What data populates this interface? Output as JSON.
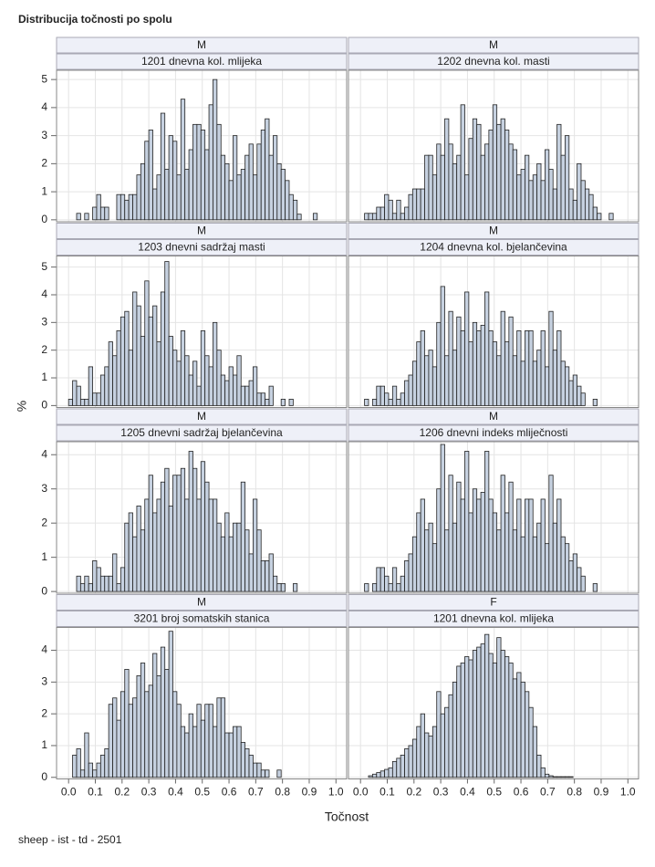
{
  "chart_data": {
    "type": "histogram",
    "title": "Distribucija točnosti po spolu",
    "xlabel": "Točnost",
    "ylabel": "%",
    "footnote": "sheep - ist - td - 2501",
    "xlim": [
      -0.045,
      1.04
    ],
    "xticks": [
      {
        "value": 0,
        "label": "0.0"
      },
      0.1,
      0.2,
      0.3,
      0.4,
      0.5,
      0.6,
      0.7,
      0.8,
      0.9,
      {
        "value": 1,
        "label": "1.0"
      }
    ],
    "bins": [
      0,
      0.015,
      0.03,
      0.045,
      0.06,
      0.075,
      0.09,
      0.105,
      0.12,
      0.135,
      0.15,
      0.165,
      0.18,
      0.195,
      0.21,
      0.225,
      0.24,
      0.255,
      0.27,
      0.285,
      0.3,
      0.315,
      0.33,
      0.345,
      0.36,
      0.375,
      0.39,
      0.405,
      0.42,
      0.435,
      0.45,
      0.465,
      0.48,
      0.495,
      0.51,
      0.525,
      0.54,
      0.555,
      0.57,
      0.585,
      0.6,
      0.615,
      0.63,
      0.645,
      0.66,
      0.675,
      0.69,
      0.705,
      0.72,
      0.735,
      0.75,
      0.765,
      0.78,
      0.795,
      0.81,
      0.825,
      0.84,
      0.855,
      0.87,
      0.885,
      0.9,
      0.915,
      0.93,
      0.945,
      0.96
    ],
    "rows": [
      {
        "ylim": [
          -0.07,
          5.33
        ],
        "yticks": [
          0,
          1,
          2,
          3,
          4,
          5
        ],
        "panels": [
          {
            "group": "M",
            "name": "1201 dnevna kol. mlijeka",
            "values": [
              0,
              0,
              0.23,
              0,
              0.23,
              0,
              0.45,
              0.9,
              0.45,
              0.45,
              0,
              0,
              0.9,
              0.9,
              0.7,
              0.9,
              0.9,
              1.6,
              2.0,
              2.8,
              3.2,
              1.1,
              1.6,
              3.8,
              1.8,
              3.0,
              2.8,
              1.6,
              4.3,
              1.8,
              2.5,
              3.4,
              3.4,
              3.2,
              2.5,
              4.1,
              5.0,
              3.4,
              2.3,
              2.0,
              1.4,
              3.0,
              1.6,
              1.8,
              2.3,
              2.7,
              1.6,
              2.7,
              3.2,
              3.6,
              2.3,
              3.0,
              2.0,
              1.8,
              1.4,
              0.9,
              0.7,
              0.2,
              0,
              0,
              0,
              0.23,
              0,
              0
            ]
          },
          {
            "group": "M",
            "name": "1202 dnevna kol. masti",
            "values": [
              0,
              0.23,
              0.23,
              0.23,
              0.45,
              0.45,
              0.9,
              0.7,
              0.23,
              0.7,
              0.23,
              0.45,
              0.9,
              1.1,
              1.1,
              1.1,
              2.3,
              2.3,
              1.6,
              2.7,
              2.3,
              3.6,
              2.7,
              2.0,
              2.3,
              4.1,
              1.6,
              2.9,
              3.6,
              3.4,
              2.3,
              2.7,
              3.2,
              4.1,
              3.4,
              3.6,
              3.2,
              2.7,
              2.5,
              1.6,
              1.8,
              2.3,
              1.4,
              1.6,
              2.0,
              1.4,
              2.5,
              1.8,
              1.1,
              3.4,
              2.3,
              3.0,
              1.1,
              0.7,
              2.0,
              1.4,
              1.1,
              0.9,
              0.45,
              0.23,
              0,
              0,
              0.23,
              0
            ]
          }
        ]
      },
      {
        "ylim": [
          -0.07,
          5.4
        ],
        "yticks": [
          0,
          1,
          2,
          3,
          4,
          5
        ],
        "panels": [
          {
            "group": "M",
            "name": "1203 dnevni sadržaj masti",
            "values": [
              0.23,
              0.9,
              0.7,
              0.23,
              0.23,
              1.4,
              0.45,
              0.45,
              1.1,
              1.4,
              2.3,
              1.8,
              2.7,
              3.2,
              3.4,
              2.0,
              4.1,
              3.6,
              2.5,
              4.5,
              3.2,
              3.6,
              2.3,
              4.1,
              5.2,
              2.5,
              2.0,
              1.6,
              2.7,
              1.8,
              1.1,
              1.6,
              0.7,
              2.7,
              1.8,
              1.4,
              3.0,
              2.0,
              1.1,
              0.9,
              1.4,
              1.1,
              1.8,
              0.7,
              0.7,
              0.9,
              1.4,
              0.45,
              0.45,
              0.23,
              0.7,
              0,
              0,
              0.23,
              0,
              0.23,
              0,
              0,
              0,
              0,
              0,
              0,
              0,
              0
            ]
          },
          {
            "group": "M",
            "name": "1204 dnevna kol. bjelančevina",
            "values": [
              0,
              0.23,
              0,
              0.23,
              0.7,
              0.7,
              0.45,
              0.23,
              0.7,
              0.23,
              0.45,
              0.9,
              1.1,
              1.6,
              2.3,
              2.7,
              1.8,
              2.0,
              1.4,
              3.0,
              4.3,
              1.8,
              3.4,
              2.0,
              3.2,
              2.7,
              4.1,
              2.3,
              3.0,
              2.7,
              2.9,
              4.1,
              2.7,
              2.3,
              1.8,
              3.4,
              2.3,
              3.2,
              1.8,
              2.7,
              1.6,
              2.7,
              2.7,
              1.6,
              2.0,
              2.7,
              1.4,
              3.4,
              2.0,
              2.7,
              1.6,
              1.4,
              0.9,
              1.1,
              0.7,
              0.45,
              0,
              0,
              0.23,
              0,
              0,
              0,
              0,
              0
            ]
          }
        ]
      },
      {
        "ylim": [
          -0.05,
          4.38
        ],
        "yticks": [
          0,
          1,
          2,
          3,
          4
        ],
        "panels": [
          {
            "group": "M",
            "name": "1205 dnevni sadržaj bjelančevina",
            "values": [
              0,
              0,
              0.45,
              0.23,
              0.45,
              0.23,
              0.9,
              0.7,
              0.45,
              0.45,
              0.45,
              1.1,
              0.23,
              0.7,
              2.0,
              2.3,
              1.6,
              2.5,
              1.8,
              2.7,
              3.4,
              2.3,
              2.7,
              3.2,
              3.6,
              2.5,
              3.4,
              3.4,
              3.6,
              2.7,
              4.1,
              3.6,
              2.7,
              3.8,
              3.2,
              2.7,
              2.7,
              2.0,
              1.6,
              2.3,
              1.6,
              2.0,
              2.0,
              3.2,
              1.8,
              1.1,
              2.7,
              1.8,
              0.9,
              0.9,
              1.1,
              0.45,
              0.23,
              0.23,
              0,
              0,
              0.23,
              0,
              0,
              0,
              0,
              0,
              0,
              0
            ]
          },
          {
            "group": "M",
            "name": "1206 dnevni indeks mliječnosti",
            "values": [
              0,
              0.23,
              0,
              0.23,
              0.7,
              0.7,
              0.45,
              0.23,
              0.7,
              0.23,
              0.45,
              0.9,
              1.1,
              1.6,
              2.3,
              2.7,
              1.8,
              2.0,
              1.4,
              3.0,
              4.3,
              1.8,
              3.4,
              2.0,
              3.2,
              2.7,
              4.1,
              2.3,
              3.0,
              2.7,
              2.9,
              4.1,
              2.7,
              2.3,
              1.8,
              3.4,
              2.3,
              3.2,
              1.8,
              2.7,
              1.6,
              2.7,
              2.7,
              1.6,
              2.0,
              2.7,
              1.4,
              3.4,
              2.0,
              2.7,
              1.6,
              1.4,
              0.9,
              1.1,
              0.7,
              0.45,
              0,
              0,
              0.23,
              0,
              0,
              0,
              0,
              0
            ]
          }
        ]
      },
      {
        "ylim": [
          -0.05,
          4.72
        ],
        "yticks": [
          0,
          1,
          2,
          3,
          4
        ],
        "panels": [
          {
            "group": "M",
            "name": "3201 broj somatskih stanica",
            "values": [
              0,
              0.7,
              0.9,
              0.23,
              1.4,
              0.45,
              0.23,
              0.45,
              0.7,
              0.9,
              2.3,
              2.5,
              1.8,
              2.7,
              3.4,
              2.3,
              2.5,
              3.2,
              3.6,
              2.7,
              2.9,
              3.9,
              3.2,
              4.1,
              3.4,
              4.6,
              2.7,
              2.3,
              1.6,
              1.4,
              2.0,
              1.6,
              2.3,
              1.8,
              2.3,
              2.3,
              1.6,
              2.5,
              2.5,
              1.4,
              1.4,
              1.6,
              1.6,
              1.1,
              0.9,
              0.7,
              0.45,
              0.45,
              0.23,
              0.23,
              0,
              0,
              0.23,
              0,
              0,
              0,
              0,
              0,
              0,
              0,
              0,
              0,
              0,
              0
            ]
          },
          {
            "group": "F",
            "name": "1201 dnevna kol. mlijeka",
            "values": [
              0,
              0,
              0.05,
              0.1,
              0.15,
              0.2,
              0.25,
              0.3,
              0.5,
              0.6,
              0.7,
              0.9,
              1.0,
              1.2,
              1.6,
              2.0,
              1.4,
              1.3,
              1.6,
              2.7,
              2.0,
              2.2,
              2.6,
              3.0,
              3.5,
              3.6,
              3.8,
              3.7,
              4.0,
              4.1,
              4.2,
              4.5,
              3.9,
              3.6,
              4.4,
              4.0,
              3.8,
              3.6,
              3.1,
              3.3,
              3.0,
              2.7,
              2.2,
              1.6,
              0.7,
              0.3,
              0.1,
              0.05,
              0.02,
              0.02,
              0.02,
              0.02,
              0.02,
              0,
              0,
              0,
              0,
              0,
              0,
              0,
              0,
              0,
              0,
              0
            ]
          }
        ]
      }
    ]
  }
}
